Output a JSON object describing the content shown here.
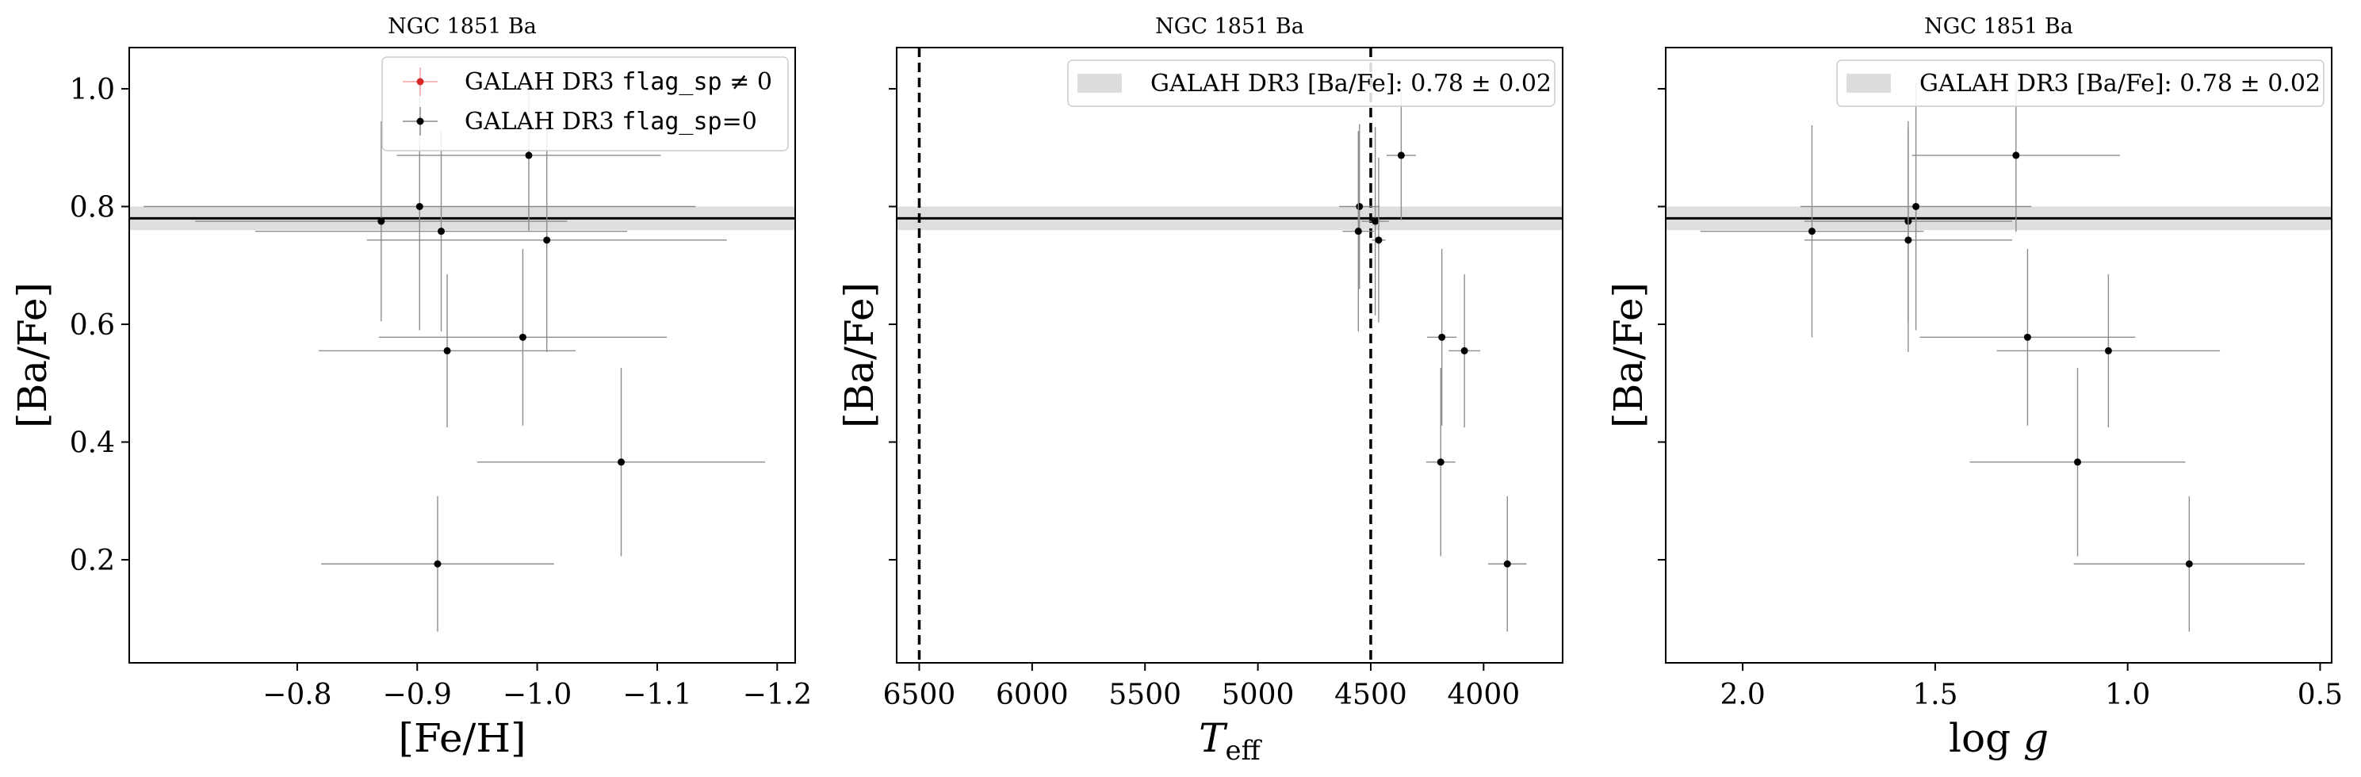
{
  "chart_data": [
    {
      "type": "scatter",
      "title": "NGC 1851 Ba",
      "xlabel": "[Fe/H]",
      "ylabel": "[Ba/Fe]",
      "xlim": [
        -0.66,
        -1.215
      ],
      "ylim": [
        0.025,
        1.07
      ],
      "xticks": [
        -0.8,
        -0.9,
        -1.0,
        -1.1,
        -1.2
      ],
      "xtick_labels": [
        "−0.8",
        "−0.9",
        "−1.0",
        "−1.1",
        "−1.2"
      ],
      "yticks": [
        0.2,
        0.4,
        0.6,
        0.8,
        1.0
      ],
      "ytick_labels": [
        "0.2",
        "0.4",
        "0.6",
        "0.8",
        "1.0"
      ],
      "ref_line": 0.78,
      "ref_band": [
        0.76,
        0.8
      ],
      "vlines": [],
      "legend_position": "upper-right",
      "legend": [
        {
          "label_pre": "GALAH DR3 ",
          "label_mono": "flag_sp",
          "label_post": " ≠ 0",
          "color": "#d62728"
        },
        {
          "label_pre": "GALAH DR3 ",
          "label_mono": "flag_sp",
          "label_post": "=0",
          "color": "#000000"
        }
      ],
      "points": [
        {
          "x": -0.87,
          "y": 0.775,
          "xerr": 0.155,
          "yerr": 0.17
        },
        {
          "x": -0.902,
          "y": 0.8,
          "xerr": 0.23,
          "yerr": 0.21
        },
        {
          "x": -0.92,
          "y": 0.758,
          "xerr": 0.155,
          "yerr": 0.17
        },
        {
          "x": -0.993,
          "y": 0.887,
          "xerr": 0.11,
          "yerr": 0.13
        },
        {
          "x": -1.008,
          "y": 0.743,
          "xerr": 0.15,
          "yerr": 0.19
        },
        {
          "x": -0.988,
          "y": 0.578,
          "xerr": 0.12,
          "yerr": 0.15
        },
        {
          "x": -0.925,
          "y": 0.555,
          "xerr": 0.107,
          "yerr": 0.13
        },
        {
          "x": -1.07,
          "y": 0.366,
          "xerr": 0.12,
          "yerr": 0.16
        },
        {
          "x": -0.917,
          "y": 0.193,
          "xerr": 0.097,
          "yerr": 0.115
        }
      ]
    },
    {
      "type": "scatter",
      "title": "NGC 1851 Ba",
      "xlabel": "T_eff",
      "ylabel": "[Ba/Fe]",
      "xlim": [
        6600,
        3650
      ],
      "ylim": [
        0.025,
        1.07
      ],
      "xticks": [
        6500,
        6000,
        5500,
        5000,
        4500,
        4000
      ],
      "xtick_labels": [
        "6500",
        "6000",
        "5500",
        "5000",
        "4500",
        "4000"
      ],
      "yticks": [
        0.2,
        0.4,
        0.6,
        0.8,
        1.0
      ],
      "ytick_labels": [
        "",
        "",
        "",
        "",
        ""
      ],
      "ref_line": 0.78,
      "ref_band": [
        0.76,
        0.8
      ],
      "vlines": [
        6500,
        4500
      ],
      "legend_position": "upper-right",
      "legend": [
        {
          "label_pre": "GALAH DR3 [Ba/Fe]: 0.78 ± 0.02",
          "label_mono": "",
          "label_post": "",
          "color": "#dddddd"
        }
      ],
      "points": [
        {
          "x": 4550,
          "y": 0.8,
          "xerr": 90,
          "yerr": 0.14
        },
        {
          "x": 4555,
          "y": 0.758,
          "xerr": 70,
          "yerr": 0.17
        },
        {
          "x": 4480,
          "y": 0.775,
          "xerr": 60,
          "yerr": 0.16
        },
        {
          "x": 4365,
          "y": 0.887,
          "xerr": 65,
          "yerr": 0.11
        },
        {
          "x": 4465,
          "y": 0.743,
          "xerr": 30,
          "yerr": 0.14
        },
        {
          "x": 4185,
          "y": 0.578,
          "xerr": 65,
          "yerr": 0.15
        },
        {
          "x": 4085,
          "y": 0.555,
          "xerr": 70,
          "yerr": 0.13
        },
        {
          "x": 4190,
          "y": 0.366,
          "xerr": 65,
          "yerr": 0.16
        },
        {
          "x": 3895,
          "y": 0.193,
          "xerr": 85,
          "yerr": 0.115
        }
      ]
    },
    {
      "type": "scatter",
      "title": "NGC 1851 Ba",
      "xlabel": "log g",
      "ylabel": "[Ba/Fe]",
      "xlim": [
        2.2,
        0.47
      ],
      "ylim": [
        0.025,
        1.07
      ],
      "xticks": [
        2.0,
        1.5,
        1.0,
        0.5
      ],
      "xtick_labels": [
        "2.0",
        "1.5",
        "1.0",
        "0.5"
      ],
      "yticks": [
        0.2,
        0.4,
        0.6,
        0.8,
        1.0
      ],
      "ytick_labels": [
        "",
        "",
        "",
        "",
        ""
      ],
      "ref_line": 0.78,
      "ref_band": [
        0.76,
        0.8
      ],
      "vlines": [],
      "legend_position": "upper-right",
      "legend": [
        {
          "label_pre": "GALAH DR3 [Ba/Fe]: 0.78 ± 0.02",
          "label_mono": "",
          "label_post": "",
          "color": "#dddddd"
        }
      ],
      "points": [
        {
          "x": 1.82,
          "y": 0.758,
          "xerr": 0.29,
          "yerr": 0.18
        },
        {
          "x": 1.57,
          "y": 0.775,
          "xerr": 0.27,
          "yerr": 0.17
        },
        {
          "x": 1.57,
          "y": 0.743,
          "xerr": 0.27,
          "yerr": 0.19
        },
        {
          "x": 1.55,
          "y": 0.8,
          "xerr": 0.3,
          "yerr": 0.21
        },
        {
          "x": 1.29,
          "y": 0.887,
          "xerr": 0.27,
          "yerr": 0.13
        },
        {
          "x": 1.26,
          "y": 0.578,
          "xerr": 0.28,
          "yerr": 0.15
        },
        {
          "x": 1.05,
          "y": 0.555,
          "xerr": 0.29,
          "yerr": 0.13
        },
        {
          "x": 1.13,
          "y": 0.366,
          "xerr": 0.28,
          "yerr": 0.16
        },
        {
          "x": 0.84,
          "y": 0.193,
          "xerr": 0.3,
          "yerr": 0.115
        }
      ]
    }
  ]
}
